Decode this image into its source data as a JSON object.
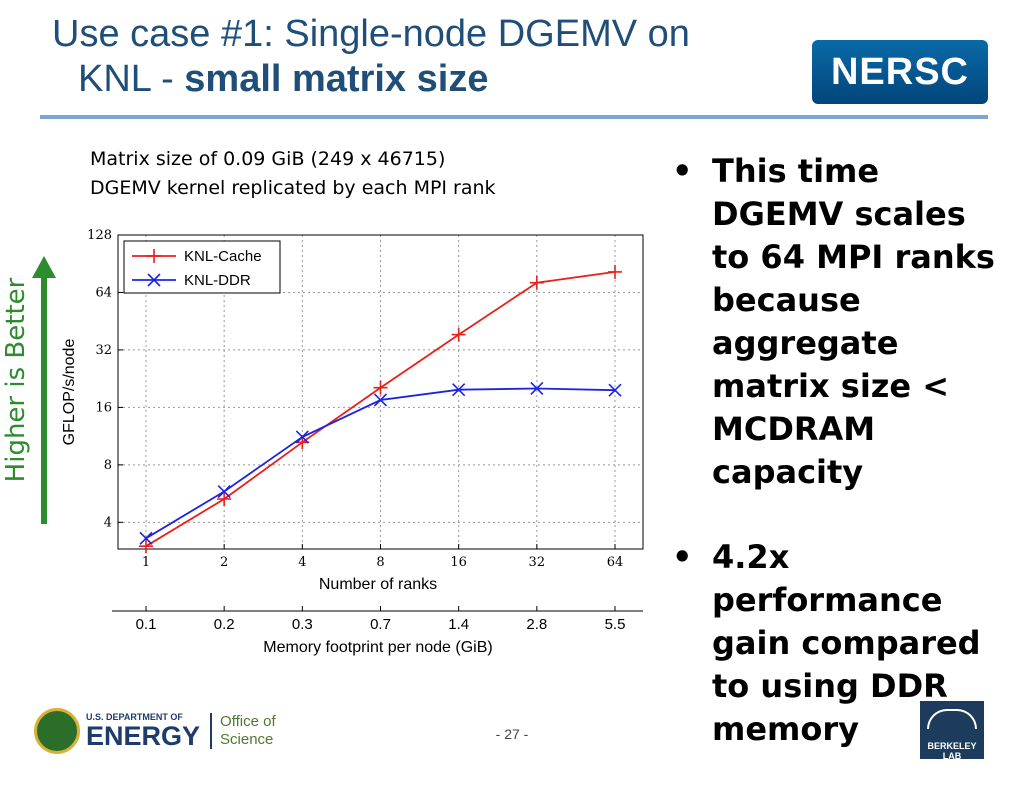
{
  "title": {
    "line1": "Use case #1: Single-node DGEMV on",
    "line2_prefix": "KNL - ",
    "line2_bold": "small matrix size"
  },
  "logo": {
    "text": "NERSC"
  },
  "subtitle": {
    "line1": "Matrix size of 0.09 GiB (249 x 46715)",
    "line2": "DGEMV kernel replicated by each MPI rank"
  },
  "side_label": "Higher is Better",
  "colors": {
    "title": "#1f4e79",
    "higher_arrow": "#2e8b2e",
    "cache": "#e8201b",
    "ddr": "#1c24e3"
  },
  "bullets": [
    "This time DGEMV scales to 64 MPI ranks because aggregate matrix size < MCDRAM capacity",
    "4.2x performance gain compared to using DDR memory"
  ],
  "footer": {
    "doe_small": "U.S. DEPARTMENT OF",
    "doe_big": "ENERGY",
    "office_l1": "Office of",
    "office_l2": "Science",
    "page": "- 27 -",
    "lab": "BERKELEY LAB"
  },
  "chart_data": {
    "type": "line",
    "title": "",
    "xlabel": "Number of ranks",
    "ylabel": "GFLOP/s/node",
    "x": [
      1,
      2,
      4,
      8,
      16,
      32,
      64
    ],
    "x_scale": "log2",
    "y_scale": "log2",
    "ylim": [
      2.9,
      128
    ],
    "yticks": [
      4,
      8,
      16,
      32,
      64,
      128
    ],
    "grid": true,
    "legend_position": "top-left",
    "secondary_axis": {
      "label": "Memory footprint per node (GiB)",
      "ticks": [
        "0.1",
        "0.2",
        "0.3",
        "0.7",
        "1.4",
        "2.8",
        "5.5"
      ]
    },
    "series": [
      {
        "name": "KNL-Cache",
        "marker": "+",
        "values": [
          3.0,
          5.3,
          10.5,
          20.3,
          38.5,
          72,
          82
        ]
      },
      {
        "name": "KNL-DDR",
        "marker": "x",
        "values": [
          3.3,
          5.8,
          11.2,
          17.5,
          19.8,
          20.1,
          19.7
        ]
      }
    ]
  }
}
